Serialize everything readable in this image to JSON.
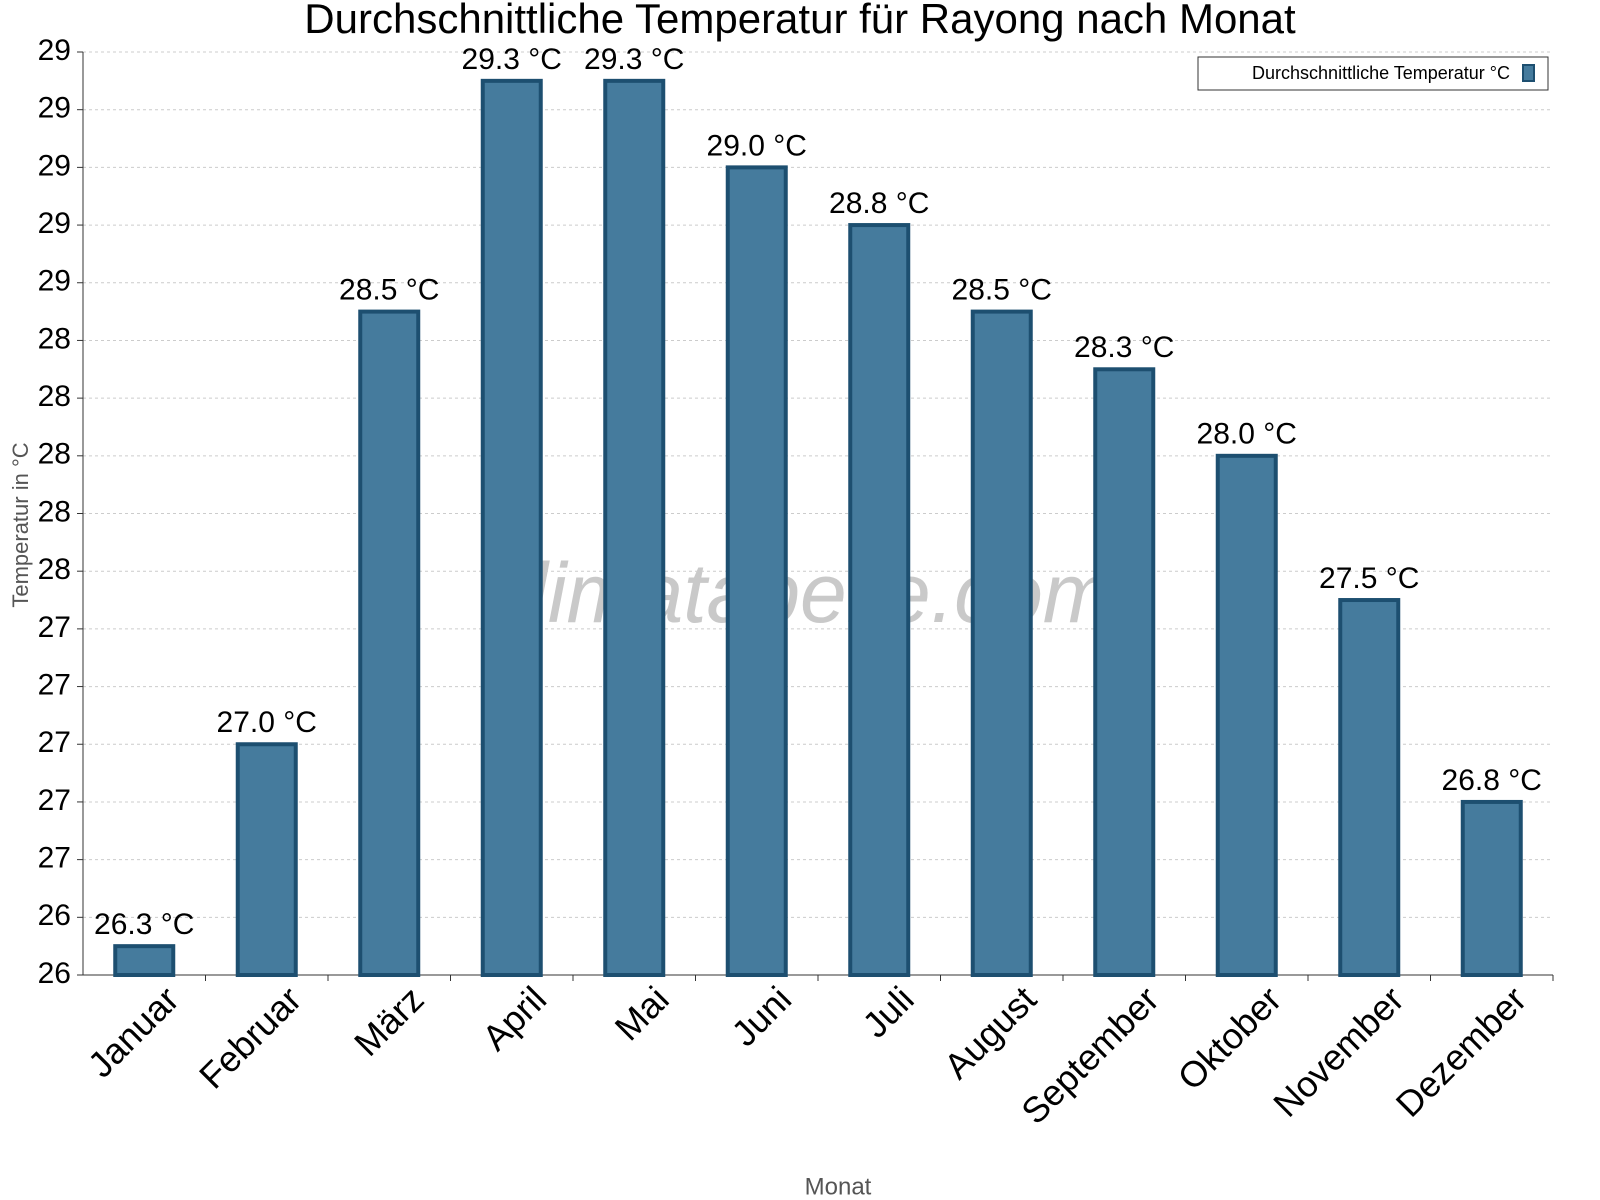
{
  "chart_data": {
    "type": "bar",
    "title": "Durchschnittliche Temperatur für Rayong nach Monat",
    "watermark": "klimatabelle.com",
    "x_label": "Monat",
    "y_label": "Temperatur in °C",
    "categories": [
      "Januar",
      "Februar",
      "März",
      "April",
      "Mai",
      "Juni",
      "Juli",
      "August",
      "September",
      "Oktober",
      "November",
      "Dezember"
    ],
    "series": [
      {
        "name": "Durchschnittliche Temperatur °C",
        "color": "#457b9d",
        "values": [
          26.3,
          27.0,
          28.5,
          29.3,
          29.3,
          29.0,
          28.8,
          28.5,
          28.3,
          28.0,
          27.5,
          26.8
        ],
        "value_labels": [
          "26.3 °C",
          "27.0 °C",
          "28.5 °C",
          "29.3 °C",
          "29.3 °C",
          "29.0 °C",
          "28.8 °C",
          "28.5 °C",
          "28.3 °C",
          "28.0 °C",
          "27.5 °C",
          "26.8 °C"
        ]
      }
    ],
    "ylim": [
      26.2,
      29.4
    ],
    "yticks": [
      {
        "value": 26.2,
        "label": "26"
      },
      {
        "value": 26.4,
        "label": "26"
      },
      {
        "value": 26.6,
        "label": "27"
      },
      {
        "value": 26.8,
        "label": "27"
      },
      {
        "value": 27.0,
        "label": "27"
      },
      {
        "value": 27.2,
        "label": "27"
      },
      {
        "value": 27.4,
        "label": "27"
      },
      {
        "value": 27.6,
        "label": "28"
      },
      {
        "value": 27.8,
        "label": "28"
      },
      {
        "value": 28.0,
        "label": "28"
      },
      {
        "value": 28.2,
        "label": "28"
      },
      {
        "value": 28.4,
        "label": "28"
      },
      {
        "value": 28.6,
        "label": "29"
      },
      {
        "value": 28.8,
        "label": "29"
      },
      {
        "value": 29.0,
        "label": "29"
      },
      {
        "value": 29.2,
        "label": "29"
      },
      {
        "value": 29.4,
        "label": "29"
      }
    ],
    "grid": true,
    "legend": "top-right"
  }
}
